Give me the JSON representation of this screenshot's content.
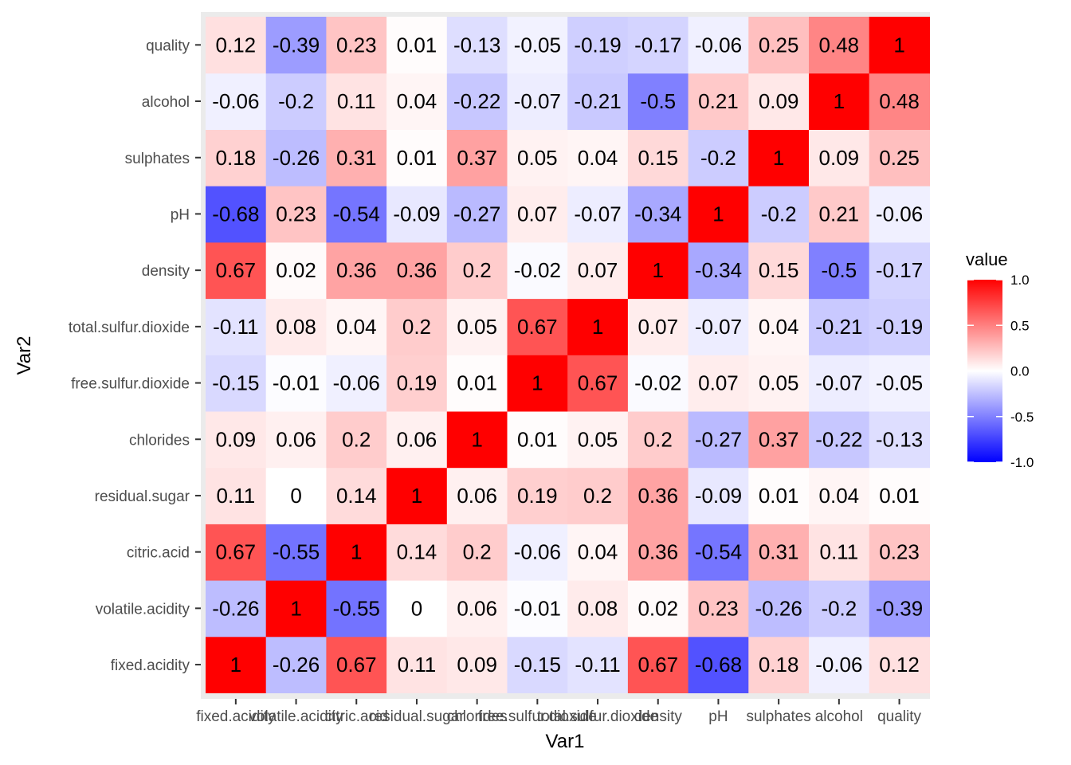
{
  "chart_data": {
    "type": "heatmap",
    "title": "",
    "xlabel": "Var1",
    "ylabel": "Var2",
    "x_categories": [
      "fixed.acidity",
      "volatile.acidity",
      "citric.acid",
      "residual.sugar",
      "chlorides",
      "free.sulfur.dioxide",
      "total.sulfur.dioxide",
      "density",
      "pH",
      "sulphates",
      "alcohol",
      "quality"
    ],
    "y_categories": [
      "fixed.acidity",
      "volatile.acidity",
      "citric.acid",
      "residual.sugar",
      "chlorides",
      "free.sulfur.dioxide",
      "total.sulfur.dioxide",
      "density",
      "pH",
      "sulphates",
      "alcohol",
      "quality"
    ],
    "values": [
      [
        1,
        -0.26,
        0.67,
        0.11,
        0.09,
        -0.15,
        -0.11,
        0.67,
        -0.68,
        0.18,
        -0.06,
        0.12
      ],
      [
        -0.26,
        1,
        -0.55,
        0,
        0.06,
        -0.01,
        0.08,
        0.02,
        0.23,
        -0.26,
        -0.2,
        -0.39
      ],
      [
        0.67,
        -0.55,
        1,
        0.14,
        0.2,
        -0.06,
        0.04,
        0.36,
        -0.54,
        0.31,
        0.11,
        0.23
      ],
      [
        0.11,
        0,
        0.14,
        1,
        0.06,
        0.19,
        0.2,
        0.36,
        -0.09,
        0.01,
        0.04,
        0.01
      ],
      [
        0.09,
        0.06,
        0.2,
        0.06,
        1,
        0.01,
        0.05,
        0.2,
        -0.27,
        0.37,
        -0.22,
        -0.13
      ],
      [
        -0.15,
        -0.01,
        -0.06,
        0.19,
        0.01,
        1,
        0.67,
        -0.02,
        0.07,
        0.05,
        -0.07,
        -0.05
      ],
      [
        -0.11,
        0.08,
        0.04,
        0.2,
        0.05,
        0.67,
        1,
        0.07,
        -0.07,
        0.04,
        -0.21,
        -0.19
      ],
      [
        0.67,
        0.02,
        0.36,
        0.36,
        0.2,
        -0.02,
        0.07,
        1,
        -0.34,
        0.15,
        -0.5,
        -0.17
      ],
      [
        -0.68,
        0.23,
        -0.54,
        -0.09,
        -0.27,
        0.07,
        -0.07,
        -0.34,
        1,
        -0.2,
        0.21,
        -0.06
      ],
      [
        0.18,
        -0.26,
        0.31,
        0.01,
        0.37,
        0.05,
        0.04,
        0.15,
        -0.2,
        1,
        0.09,
        0.25
      ],
      [
        -0.06,
        -0.2,
        0.11,
        0.04,
        -0.22,
        -0.07,
        -0.21,
        -0.5,
        0.21,
        0.09,
        1,
        0.48
      ],
      [
        0.12,
        -0.39,
        0.23,
        0.01,
        -0.13,
        -0.05,
        -0.19,
        -0.17,
        -0.06,
        0.25,
        0.48,
        1
      ]
    ],
    "color_scale": {
      "low": "#0000ff",
      "mid": "#ffffff",
      "high": "#ff0000",
      "limits": [
        -1,
        1
      ]
    },
    "legend": {
      "title": "value",
      "placement": "right",
      "ticks": [
        "1.0",
        "0.5",
        "0.0",
        "-0.5",
        "-1.0"
      ],
      "tick_values": [
        1,
        0.5,
        0,
        -0.5,
        -1
      ]
    },
    "panel_background": "#ebebeb",
    "grid": true
  }
}
